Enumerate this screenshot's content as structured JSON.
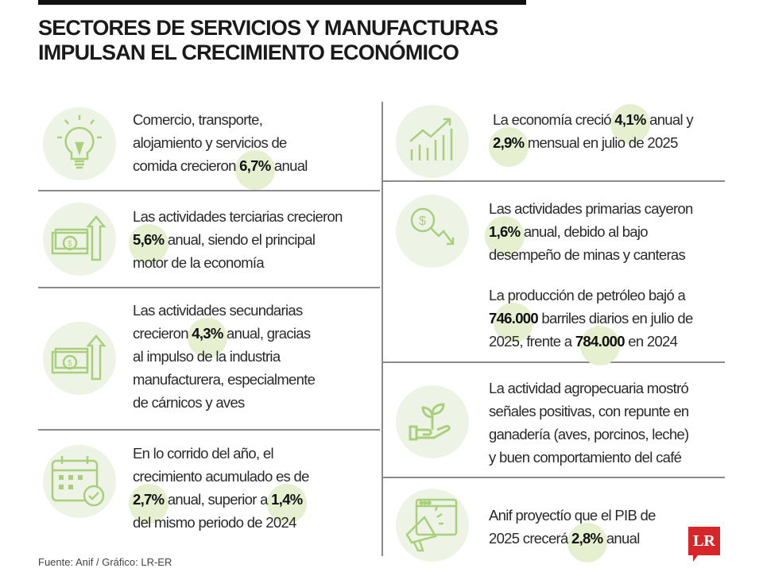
{
  "title": [
    "SECTORES DE SERVICIOS Y MANUFACTURAS",
    "IMPULSAN EL CRECIMIENTO ECONÓMICO"
  ],
  "colors": {
    "icon": "#a9cf7d",
    "icon_bg": "#eef4e5",
    "highlight": "#e6efcf",
    "logo": "#d7262a"
  },
  "left": [
    {
      "icon": "lightbulb-icon",
      "parts": [
        "Comercio, transporte,\nalojamiento y servicios de\ncomida crecieron ",
        "6,7%",
        " anual"
      ]
    },
    {
      "icon": "money-up-arrow-icon",
      "parts": [
        "Las actividades terciarias crecieron\n",
        "5,6%",
        " anual, siendo el principal\nmotor de la economía"
      ]
    },
    {
      "icon": "money-up-arrow-icon",
      "parts": [
        "Las actividades secundarias\ncrecieron ",
        "4,3%",
        " anual, gracias\nal impulso de la industria\nmanufacturera, especialmente\nde cárnicos y aves"
      ]
    },
    {
      "icon": "calendar-check-icon",
      "parts": [
        "En lo corrido del año, el\ncrecimiento acumulado es de\n",
        "2,7%",
        " anual, superior a ",
        "1,4%",
        "\ndel mismo periodo de 2024"
      ]
    }
  ],
  "right": [
    {
      "icon": "growth-chart-icon",
      "parts": [
        "La economía creció ",
        "4,1%",
        " anual y\n",
        "2,9%",
        " mensual en julio de 2025"
      ]
    },
    {
      "icon": "dollar-down-arrow-icon",
      "parts": [
        "Las actividades primarias cayeron\n",
        "1,6%",
        " anual, debido al bajo\ndesempeño de minas y canteras"
      ],
      "parts2": [
        "La producción de petróleo bajó a\n",
        "746.000",
        " barriles diarios en julio de\n2025, frente a ",
        "784.000",
        " en 2024"
      ]
    },
    {
      "icon": "plant-hand-icon",
      "parts": [
        "La actividad agropecuaria mostró\nseñales positivas, con repunte en\nganadería (aves, porcinos, leche)\ny buen comportamiento del café"
      ]
    },
    {
      "icon": "megaphone-icon",
      "parts": [
        "Anif proyectío que el PIB de\n2025 crecerá ",
        "2,8%",
        " anual"
      ]
    }
  ],
  "source": "Fuente: Anif / Gráfico: LR-ER",
  "logo": "LR"
}
